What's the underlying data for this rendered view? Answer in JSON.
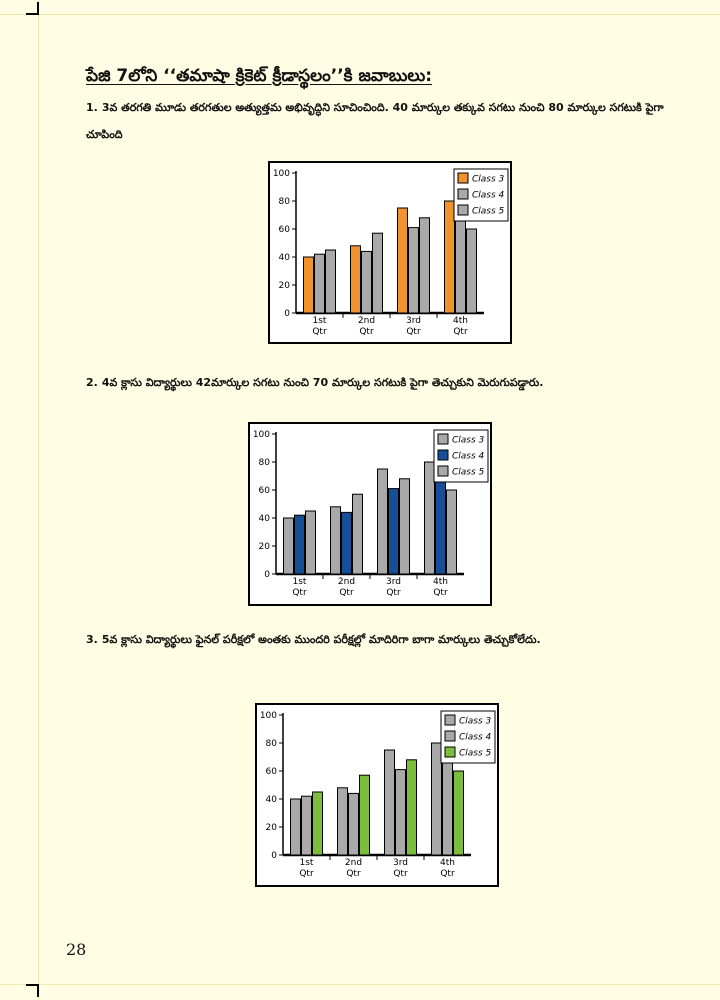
{
  "heading": "పేజి 7లోని ‘‘తమాషా క్రికెట్ క్రీడాస్థలం’’కి జవాబులు:",
  "answers": [
    {
      "number": "1.",
      "text": "3వ తరగతి మూడు తరగతుల అత్యుత్తమ అభివృద్ధిని సూచించింది.  40 మార్కుల తక్కువ సగటు నుంచి 80 మార్కుల సగటుకి పైగా చూపింది"
    },
    {
      "number": "2.",
      "text": "4వ క్లాసు విద్యార్థులు 42మార్కుల సగటు నుంచి 70 మార్కుల సగటుకి పైగా తెచ్చుకుని మెరుగుపడ్డారు."
    },
    {
      "number": "3.",
      "text": "5వ క్లాసు విద్యార్థులు ఫైనల్ పరీక్షలో అంతకు ముందరి పరీక్షల్లో మాదిరిగా బాగా మార్కులు తెచ్చుకోలేదు."
    }
  ],
  "page_number": "28",
  "colors": {
    "grey": "#a9a9a9",
    "orange": "#f0922e",
    "blue": "#174f96",
    "green": "#7cbd3c"
  },
  "chart_data": [
    {
      "type": "bar",
      "categories": [
        "1st Qtr",
        "2nd Qtr",
        "3rd Qtr",
        "4th Qtr"
      ],
      "series": [
        {
          "name": "Class 3",
          "values": [
            40,
            48,
            75,
            80
          ]
        },
        {
          "name": "Class 4",
          "values": [
            42,
            44,
            61,
            73
          ]
        },
        {
          "name": "Class 5",
          "values": [
            45,
            57,
            68,
            60
          ]
        }
      ],
      "yticks": [
        0,
        20,
        40,
        60,
        80,
        100
      ],
      "ylim": [
        0,
        100
      ],
      "legend": "top-right",
      "highlight": "Class 3",
      "highlight_color": "#f0922e"
    },
    {
      "type": "bar",
      "categories": [
        "1st Qtr",
        "2nd Qtr",
        "3rd Qtr",
        "4th Qtr"
      ],
      "series": [
        {
          "name": "Class 3",
          "values": [
            40,
            48,
            75,
            80
          ]
        },
        {
          "name": "Class 4",
          "values": [
            42,
            44,
            61,
            73
          ]
        },
        {
          "name": "Class 5",
          "values": [
            45,
            57,
            68,
            60
          ]
        }
      ],
      "yticks": [
        0,
        20,
        40,
        60,
        80,
        100
      ],
      "ylim": [
        0,
        100
      ],
      "legend": "top-right",
      "highlight": "Class 4",
      "highlight_color": "#174f96"
    },
    {
      "type": "bar",
      "categories": [
        "1st Qtr",
        "2nd Qtr",
        "3rd Qtr",
        "4th Qtr"
      ],
      "series": [
        {
          "name": "Class 3",
          "values": [
            40,
            48,
            75,
            80
          ]
        },
        {
          "name": "Class 4",
          "values": [
            42,
            44,
            61,
            73
          ]
        },
        {
          "name": "Class 5",
          "values": [
            45,
            57,
            68,
            60
          ]
        }
      ],
      "yticks": [
        0,
        20,
        40,
        60,
        80,
        100
      ],
      "ylim": [
        0,
        100
      ],
      "legend": "top-right",
      "highlight": "Class 5",
      "highlight_color": "#7cbd3c"
    }
  ]
}
